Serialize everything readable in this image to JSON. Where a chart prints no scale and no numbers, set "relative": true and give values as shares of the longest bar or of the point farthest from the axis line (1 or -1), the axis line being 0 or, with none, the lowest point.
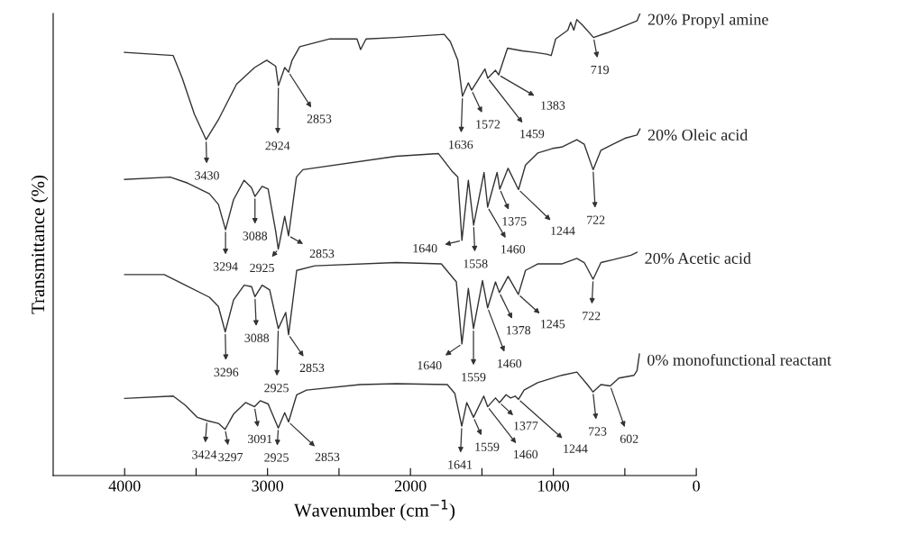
{
  "chart_data": {
    "type": "line",
    "xlabel": "Wavenumber (cm$^{−1}$)",
    "ylabel": "Transmittance (%)",
    "relative": true,
    "xlim": [
      4500,
      0
    ],
    "xticks": [
      4000,
      {
        "value": 3500,
        "label": null
      },
      3000,
      {
        "value": 2500,
        "label": null
      },
      2000,
      {
        "value": 1500,
        "label": null
      },
      1000,
      {
        "value": 500,
        "label": null
      },
      0
    ],
    "grid": false,
    "legend": false,
    "marker": "none",
    "line_style": "solid",
    "series": [
      {
        "name": "20% Propyl amine",
        "color": "#333333",
        "x": [
          4001,
          3660,
          3597,
          3512,
          3430,
          3344,
          3217,
          3091,
          3006,
          2943,
          2924,
          2880,
          2853,
          2828,
          2775,
          2564,
          2374,
          2349,
          2311,
          2100,
          1764,
          1721,
          1669,
          1636,
          1595,
          1572,
          1479,
          1459,
          1405,
          1383,
          1321,
          1216,
          1131,
          1047,
          1015,
          984,
          899,
          879,
          857,
          836,
          794,
          719,
          626,
          520,
          415,
          394
        ],
        "values": [
          0.916,
          0.909,
          0.86,
          0.782,
          0.727,
          0.77,
          0.847,
          0.883,
          0.899,
          0.886,
          0.844,
          0.883,
          0.873,
          0.899,
          0.928,
          0.945,
          0.945,
          0.922,
          0.945,
          0.948,
          0.955,
          0.939,
          0.899,
          0.821,
          0.85,
          0.834,
          0.88,
          0.86,
          0.877,
          0.867,
          0.925,
          0.919,
          0.916,
          0.912,
          0.909,
          0.945,
          0.964,
          0.981,
          0.964,
          0.987,
          0.974,
          0.948,
          0.958,
          0.971,
          0.984,
          1.0
        ]
      },
      {
        "name": "20% Oleic acid",
        "color": "#333333",
        "x": [
          4000,
          3681,
          3559,
          3407,
          3344,
          3294,
          3238,
          3164,
          3112,
          3088,
          3038,
          2996,
          2943,
          2925,
          2880,
          2853,
          2798,
          2753,
          2100,
          1805,
          1710,
          1669,
          1640,
          1595,
          1558,
          1485,
          1460,
          1394,
          1375,
          1317,
          1244,
          1195,
          1110,
          1005,
          942,
          836,
          784,
          722,
          667,
          583,
          499,
          415,
          394
        ],
        "values": [
          0.641,
          0.646,
          0.633,
          0.61,
          0.587,
          0.532,
          0.597,
          0.639,
          0.623,
          0.604,
          0.626,
          0.62,
          0.529,
          0.49,
          0.561,
          0.519,
          0.646,
          0.662,
          0.691,
          0.697,
          0.659,
          0.646,
          0.509,
          0.639,
          0.542,
          0.656,
          0.581,
          0.656,
          0.62,
          0.665,
          0.619,
          0.672,
          0.698,
          0.708,
          0.711,
          0.727,
          0.717,
          0.662,
          0.704,
          0.717,
          0.73,
          0.737,
          0.75
        ]
      },
      {
        "name": "20% Acetic acid",
        "color": "#333333",
        "x": [
          4000,
          3723,
          3575,
          3407,
          3344,
          3296,
          3238,
          3164,
          3112,
          3088,
          3038,
          2985,
          2925,
          2873,
          2853,
          2796,
          2669,
          2100,
          1784,
          1679,
          1640,
          1595,
          1559,
          1496,
          1460,
          1405,
          1378,
          1317,
          1245,
          1195,
          1110,
          942,
          836,
          784,
          722,
          667,
          583,
          457,
          415
        ],
        "values": [
          0.435,
          0.435,
          0.412,
          0.386,
          0.366,
          0.311,
          0.38,
          0.412,
          0.409,
          0.387,
          0.412,
          0.402,
          0.318,
          0.353,
          0.305,
          0.444,
          0.454,
          0.461,
          0.458,
          0.419,
          0.285,
          0.405,
          0.318,
          0.422,
          0.363,
          0.419,
          0.396,
          0.431,
          0.392,
          0.444,
          0.458,
          0.458,
          0.47,
          0.461,
          0.425,
          0.461,
          0.467,
          0.477,
          0.483
        ]
      },
      {
        "name": "0% monofunctional reactant",
        "color": "#333333",
        "x": [
          4000,
          3660,
          3575,
          3491,
          3424,
          3344,
          3297,
          3238,
          3154,
          3091,
          3051,
          2996,
          2925,
          2880,
          2853,
          2796,
          2727,
          2353,
          2100,
          1742,
          1690,
          1641,
          1606,
          1559,
          1487,
          1460,
          1405,
          1377,
          1331,
          1300,
          1267,
          1244,
          1205,
          1110,
          942,
          836,
          762,
          723,
          667,
          602,
          541,
          436,
          415,
          398
        ],
        "values": [
          0.167,
          0.172,
          0.152,
          0.126,
          0.119,
          0.113,
          0.1,
          0.133,
          0.158,
          0.149,
          0.162,
          0.155,
          0.103,
          0.136,
          0.116,
          0.175,
          0.185,
          0.197,
          0.199,
          0.197,
          0.178,
          0.107,
          0.158,
          0.126,
          0.172,
          0.149,
          0.168,
          0.158,
          0.175,
          0.168,
          0.172,
          0.165,
          0.185,
          0.201,
          0.217,
          0.224,
          0.197,
          0.181,
          0.197,
          0.194,
          0.211,
          0.217,
          0.227,
          0.263
        ]
      }
    ],
    "annotations": [
      {
        "text": "3430",
        "x": 3430,
        "y": 0.727
      },
      {
        "text": "2924",
        "x": 2924,
        "y": 0.844
      },
      {
        "text": "2853",
        "x": 2853,
        "y": 0.873
      },
      {
        "text": "1636",
        "x": 1636,
        "y": 0.821
      },
      {
        "text": "1572",
        "x": 1572,
        "y": 0.834
      },
      {
        "text": "1459",
        "x": 1459,
        "y": 0.86
      },
      {
        "text": "1383",
        "x": 1383,
        "y": 0.867
      },
      {
        "text": "719",
        "x": 719,
        "y": 0.948
      },
      {
        "text": "3294",
        "x": 3294,
        "y": 0.532
      },
      {
        "text": "3088",
        "x": 3088,
        "y": 0.604
      },
      {
        "text": "2925",
        "x": 2925,
        "y": 0.49
      },
      {
        "text": "2853",
        "x": 2853,
        "y": 0.519
      },
      {
        "text": "1640",
        "x": 1640,
        "y": 0.509
      },
      {
        "text": "1558",
        "x": 1558,
        "y": 0.542
      },
      {
        "text": "1460",
        "x": 1460,
        "y": 0.581
      },
      {
        "text": "1375",
        "x": 1375,
        "y": 0.62
      },
      {
        "text": "1244",
        "x": 1244,
        "y": 0.619
      },
      {
        "text": "722",
        "x": 722,
        "y": 0.662
      },
      {
        "text": "3296",
        "x": 3296,
        "y": 0.311
      },
      {
        "text": "3088",
        "x": 3088,
        "y": 0.387
      },
      {
        "text": "2925",
        "x": 2925,
        "y": 0.318
      },
      {
        "text": "2853",
        "x": 2853,
        "y": 0.305
      },
      {
        "text": "1640",
        "x": 1640,
        "y": 0.285
      },
      {
        "text": "1559",
        "x": 1559,
        "y": 0.318
      },
      {
        "text": "1460",
        "x": 1460,
        "y": 0.363
      },
      {
        "text": "1378",
        "x": 1378,
        "y": 0.396
      },
      {
        "text": "1245",
        "x": 1245,
        "y": 0.392
      },
      {
        "text": "722",
        "x": 722,
        "y": 0.425
      },
      {
        "text": "3424",
        "x": 3424,
        "y": 0.119
      },
      {
        "text": "3297",
        "x": 3297,
        "y": 0.1
      },
      {
        "text": "3091",
        "x": 3091,
        "y": 0.149
      },
      {
        "text": "2925",
        "x": 2925,
        "y": 0.103
      },
      {
        "text": "2853",
        "x": 2853,
        "y": 0.116
      },
      {
        "text": "1641",
        "x": 1641,
        "y": 0.107
      },
      {
        "text": "1559",
        "x": 1559,
        "y": 0.126
      },
      {
        "text": "1460",
        "x": 1460,
        "y": 0.149
      },
      {
        "text": "1377",
        "x": 1377,
        "y": 0.158
      },
      {
        "text": "1244",
        "x": 1244,
        "y": 0.165
      },
      {
        "text": "723",
        "x": 723,
        "y": 0.181
      },
      {
        "text": "602",
        "x": 602,
        "y": 0.194
      }
    ]
  }
}
